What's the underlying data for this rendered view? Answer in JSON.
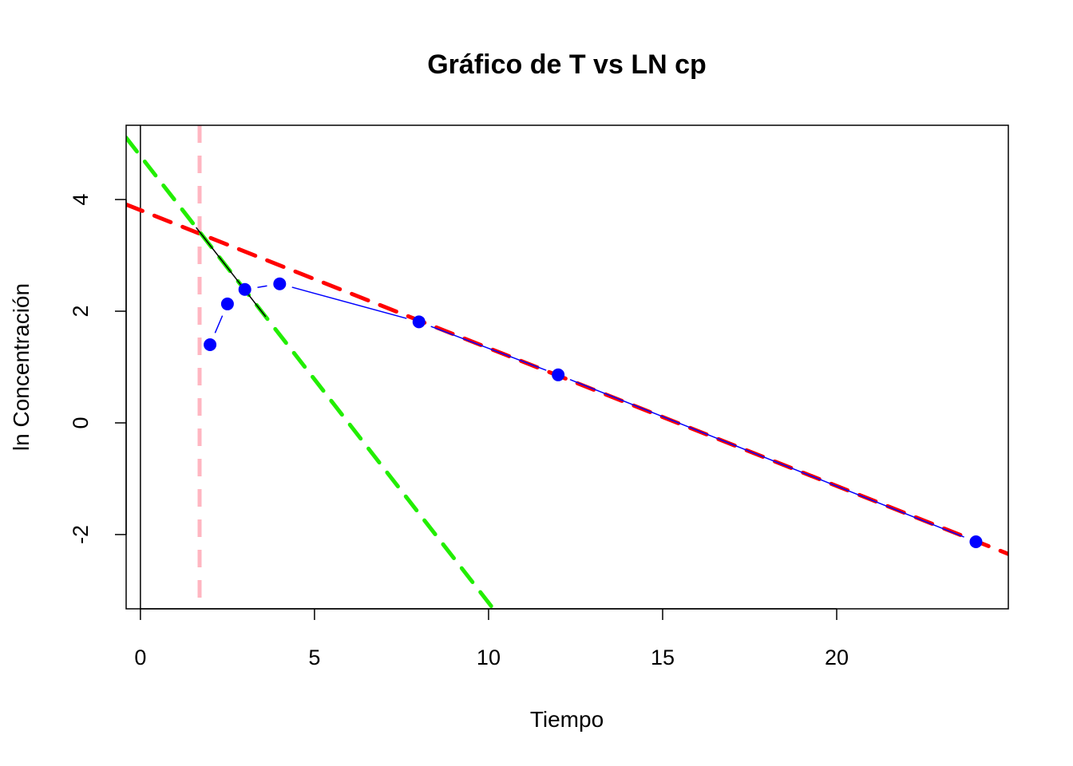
{
  "chart_data": {
    "type": "line",
    "title": "Gráfico de T vs LN cp",
    "xlabel": "Tiempo",
    "ylabel": "ln Concentración",
    "xlim": [
      -0.41,
      24.93
    ],
    "ylim": [
      -3.33,
      5.33
    ],
    "xticks": [
      0,
      5,
      10,
      15,
      20
    ],
    "yticks": [
      -2,
      0,
      2,
      4
    ],
    "grid": false,
    "series": [
      {
        "type": "points-and-lines",
        "color": "#0000ff",
        "x": [
          2,
          2.5,
          3,
          4,
          8,
          12,
          24
        ],
        "y": [
          1.4,
          2.13,
          2.39,
          2.49,
          1.81,
          0.86,
          -2.13
        ]
      }
    ],
    "segments": [
      {
        "color": "#000000",
        "x": [
          1.6,
          3.6
        ],
        "y": [
          3.5,
          1.9
        ]
      }
    ],
    "reference_lines": [
      {
        "kind": "vertical",
        "x": 0,
        "color": "#000000",
        "style": "solid"
      },
      {
        "kind": "vertical",
        "x": 1.7,
        "color": "#ffb6c1",
        "style": "dashed"
      },
      {
        "kind": "line",
        "intercept": 3.81,
        "slope": -0.247,
        "color": "#ff0000",
        "style": "dashed"
      },
      {
        "kind": "line",
        "intercept": 4.78,
        "slope": -0.8,
        "color": "#22ee00",
        "style": "dashed"
      }
    ]
  }
}
